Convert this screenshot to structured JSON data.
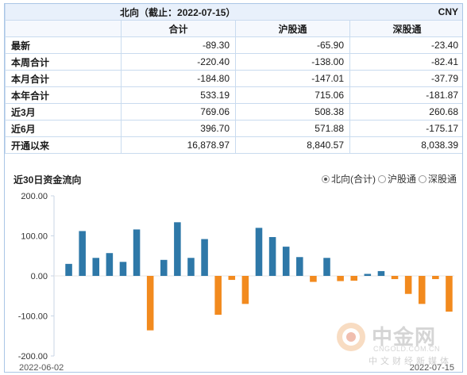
{
  "table": {
    "title": "北向（截止：2022-07-15）",
    "currency": "CNY",
    "columns": [
      "合计",
      "沪股通",
      "深股通"
    ],
    "rows": [
      {
        "label": "最新",
        "values": [
          "-89.30",
          "-65.90",
          "-23.40"
        ]
      },
      {
        "label": "本周合计",
        "values": [
          "-220.40",
          "-138.00",
          "-82.41"
        ]
      },
      {
        "label": "本月合计",
        "values": [
          "-184.80",
          "-147.01",
          "-37.79"
        ]
      },
      {
        "label": "本年合计",
        "values": [
          "533.19",
          "715.06",
          "-181.87"
        ]
      },
      {
        "label": "近3月",
        "values": [
          "769.06",
          "508.38",
          "260.68"
        ]
      },
      {
        "label": "近6月",
        "values": [
          "396.70",
          "571.88",
          "-175.17"
        ]
      },
      {
        "label": "开通以来",
        "values": [
          "16,878.97",
          "8,840.57",
          "8,038.39"
        ]
      }
    ]
  },
  "chart_panel": {
    "title": "近30日资金流向",
    "options": [
      {
        "label": "北向(合计)",
        "selected": true
      },
      {
        "label": "沪股通",
        "selected": false
      },
      {
        "label": "深股通",
        "selected": false
      }
    ]
  },
  "chart_data": {
    "type": "bar",
    "title": "近30日资金流向",
    "yticks": [
      "200.00",
      "100.00",
      "0.00",
      "-100.00",
      "-200.00"
    ],
    "ylim": [
      -200,
      200
    ],
    "grid": false,
    "x_start_label": "2022-06-02",
    "x_end_label": "2022-07-15",
    "positive_color": "#2e78a8",
    "negative_color": "#f28a1e",
    "values": [
      30,
      112,
      45,
      57,
      35,
      116,
      -136,
      40,
      134,
      45,
      92,
      -97,
      -10,
      -70,
      120,
      97,
      73,
      47,
      -15,
      45,
      -13,
      -12,
      5,
      12,
      -8,
      -45,
      -70,
      -8,
      -89.3
    ]
  },
  "brand": {
    "name": "中金网",
    "domain": "CNGOLD.COM.CN",
    "tagline": "中文财经新媒体"
  }
}
